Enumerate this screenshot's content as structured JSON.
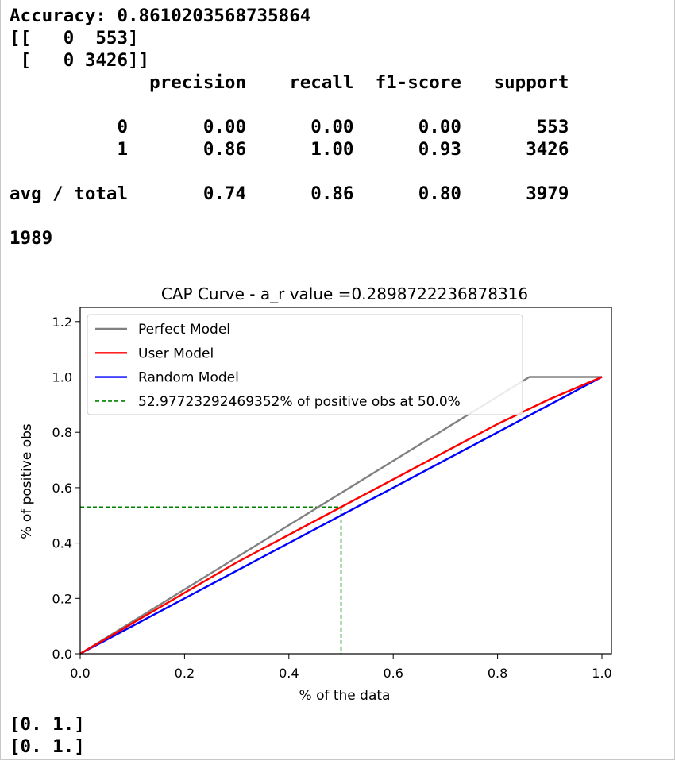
{
  "output_top": {
    "lines": [
      "Accuracy: 0.8610203568735864",
      "[[   0  553]",
      " [   0 3426]]",
      "             precision    recall  f1-score   support",
      "",
      "          0       0.00      0.00      0.00       553",
      "          1       0.86      1.00      0.93      3426",
      "",
      "avg / total       0.74      0.86      0.80      3979",
      "",
      "1989"
    ]
  },
  "output_bottom": {
    "lines": [
      "[0. 1.]",
      "[0. 1.]"
    ]
  },
  "chart_data": {
    "type": "line",
    "title": "CAP Curve - a_r value =0.2898722236878316",
    "xlabel": "% of the data",
    "ylabel": "% of positive obs",
    "xlim": [
      0.0,
      1.0
    ],
    "ylim": [
      0.0,
      1.25
    ],
    "xticks": [
      0.0,
      0.2,
      0.4,
      0.6,
      0.8,
      1.0
    ],
    "xtick_labels": [
      "0.0",
      "0.2",
      "0.4",
      "0.6",
      "0.8",
      "1.0"
    ],
    "yticks": [
      0.0,
      0.2,
      0.4,
      0.6,
      0.8,
      1.0,
      1.2
    ],
    "ytick_labels": [
      "0.0",
      "0.2",
      "0.4",
      "0.6",
      "0.8",
      "1.0",
      "1.2"
    ],
    "grid": false,
    "legend_position": "top-left",
    "series": [
      {
        "name": "Perfect Model",
        "color": "#808080",
        "style": "solid",
        "x": [
          0.0,
          0.861,
          1.0
        ],
        "y": [
          0.0,
          1.0,
          1.0
        ]
      },
      {
        "name": "User Model",
        "color": "#ff0000",
        "style": "solid",
        "x": [
          0.0,
          0.1,
          0.2,
          0.3,
          0.4,
          0.5,
          0.6,
          0.7,
          0.8,
          0.9,
          1.0
        ],
        "y": [
          0.0,
          0.11,
          0.22,
          0.33,
          0.43,
          0.53,
          0.63,
          0.73,
          0.83,
          0.92,
          1.0
        ]
      },
      {
        "name": "Random Model",
        "color": "#0000ff",
        "style": "solid",
        "x": [
          0.0,
          1.0
        ],
        "y": [
          0.0,
          1.0
        ]
      },
      {
        "name": "52.97723292469352% of positive obs at 50.0%",
        "color": "#008000",
        "style": "dashed",
        "x": [
          0.0,
          0.5,
          0.5
        ],
        "y": [
          0.5298,
          0.5298,
          0.0
        ]
      }
    ]
  }
}
